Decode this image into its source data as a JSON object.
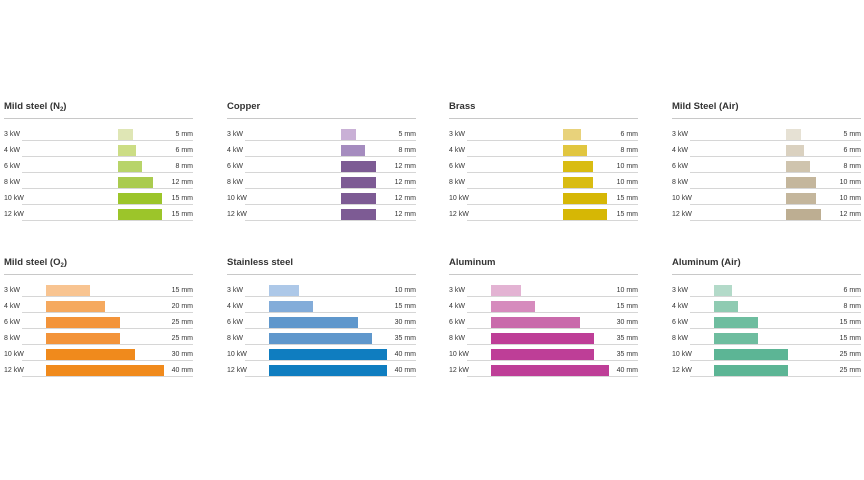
{
  "chart_data": [
    {
      "type": "bar",
      "title": "Mild steel (N",
      "title_sub": "2",
      "title_end": ")",
      "categories": [
        "3 kW",
        "4 kW",
        "6 kW",
        "8 kW",
        "10 kW",
        "12 kW"
      ],
      "values": [
        5,
        6,
        8,
        12,
        15,
        15
      ],
      "value_labels": [
        "5 mm",
        "6 mm",
        "8 mm",
        "12 mm",
        "15 mm",
        "15 mm"
      ],
      "colors": [
        "#dfe6b5",
        "#ccdd85",
        "#b8d46a",
        "#aacb4f",
        "#9cc52a",
        "#9cc52a"
      ]
    },
    {
      "type": "bar",
      "title": "Copper",
      "title_sub": "",
      "title_end": "",
      "categories": [
        "3 kW",
        "4 kW",
        "6 kW",
        "8 kW",
        "10 kW",
        "12 kW"
      ],
      "values": [
        5,
        8,
        12,
        12,
        12,
        12
      ],
      "value_labels": [
        "5 mm",
        "8 mm",
        "12 mm",
        "12 mm",
        "12 mm",
        "12 mm"
      ],
      "colors": [
        "#c9b0d6",
        "#a58cbf",
        "#7d5b94",
        "#7d5b94",
        "#7d5b94",
        "#7d5b94"
      ]
    },
    {
      "type": "bar",
      "title": "Brass",
      "title_sub": "",
      "title_end": "",
      "categories": [
        "3 kW",
        "4 kW",
        "6 kW",
        "8 kW",
        "10 kW",
        "12 kW"
      ],
      "values": [
        6,
        8,
        10,
        10,
        15,
        15
      ],
      "value_labels": [
        "6 mm",
        "8 mm",
        "10 mm",
        "10 mm",
        "15 mm",
        "15 mm"
      ],
      "colors": [
        "#e8d27b",
        "#e1c640",
        "#d9bc12",
        "#d9bc12",
        "#d6b705",
        "#d6b705"
      ]
    },
    {
      "type": "bar",
      "title": "Mild Steel (Air)",
      "title_sub": "",
      "title_end": "",
      "categories": [
        "3 kW",
        "4 kW",
        "6 kW",
        "8 kW",
        "10 kW",
        "12 kW"
      ],
      "values": [
        5,
        6,
        8,
        10,
        10,
        12
      ],
      "value_labels": [
        "5 mm",
        "6 mm",
        "8 mm",
        "10 mm",
        "10 mm",
        "12 mm"
      ],
      "colors": [
        "#e6e1d4",
        "#dad1c0",
        "#cfc4ae",
        "#c4b69c",
        "#c4b69c",
        "#bdae92"
      ]
    },
    {
      "type": "bar",
      "title": "Mild steel (O",
      "title_sub": "2",
      "title_end": ")",
      "categories": [
        "3 kW",
        "4 kW",
        "6 kW",
        "8 kW",
        "10 kW",
        "12 kW"
      ],
      "values": [
        15,
        20,
        25,
        25,
        30,
        40
      ],
      "value_labels": [
        "15 mm",
        "20 mm",
        "25 mm",
        "25 mm",
        "30 mm",
        "40 mm"
      ],
      "colors": [
        "#f8c491",
        "#f5a95f",
        "#f3943a",
        "#f3943a",
        "#f08a1c",
        "#f08a1c"
      ]
    },
    {
      "type": "bar",
      "title": "Stainless steel",
      "title_sub": "",
      "title_end": "",
      "categories": [
        "3 kW",
        "4 kW",
        "6 kW",
        "8 kW",
        "10 kW",
        "12 kW"
      ],
      "values": [
        10,
        15,
        30,
        35,
        40,
        40
      ],
      "value_labels": [
        "10 mm",
        "15 mm",
        "30 mm",
        "35 mm",
        "40 mm",
        "40 mm"
      ],
      "colors": [
        "#adc8e8",
        "#83acd9",
        "#5f97cc",
        "#5f97cc",
        "#0f7dc0",
        "#0f7dc0"
      ]
    },
    {
      "type": "bar",
      "title": "Aluminum",
      "title_sub": "",
      "title_end": "",
      "categories": [
        "3 kW",
        "4 kW",
        "6 kW",
        "8 kW",
        "10 kW",
        "12 kW"
      ],
      "values": [
        10,
        15,
        30,
        35,
        35,
        40
      ],
      "value_labels": [
        "10 mm",
        "15 mm",
        "30 mm",
        "35 mm",
        "35 mm",
        "40 mm"
      ],
      "colors": [
        "#e3b3d3",
        "#d68bbd",
        "#c96aab",
        "#be3e97",
        "#be3e97",
        "#be3e97"
      ]
    },
    {
      "type": "bar",
      "title": "Aluminum (Air)",
      "title_sub": "",
      "title_end": "",
      "categories": [
        "3 kW",
        "4 kW",
        "6 kW",
        "8 kW",
        "10 kW",
        "12 kW"
      ],
      "values": [
        6,
        8,
        15,
        15,
        25,
        25
      ],
      "value_labels": [
        "6 mm",
        "8 mm",
        "15 mm",
        "15 mm",
        "25 mm",
        "25 mm"
      ],
      "colors": [
        "#b3dac9",
        "#8fcbb2",
        "#6ebd9f",
        "#6ebd9f",
        "#5cb595",
        "#5cb595"
      ]
    }
  ]
}
